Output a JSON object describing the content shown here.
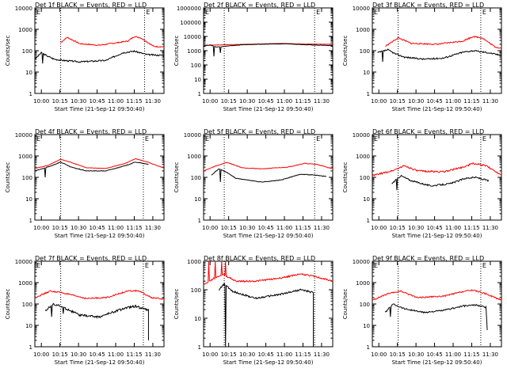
{
  "chart_data": [
    {
      "type": "line",
      "title": "Det 1f BLACK = Events, RED = LLD",
      "xlabel": "Start Time (21-Sep-12 09:50:40)",
      "ylabel": "Counts/sec",
      "ylog": true,
      "ylim": [
        1,
        10000
      ],
      "yticks": [
        "1",
        "10",
        "100",
        "1000",
        "10000"
      ],
      "xticks": [
        "10:00",
        "10:15",
        "10:30",
        "10:45",
        "11:00",
        "11:15",
        "11:30"
      ],
      "xlim_min": [
        0,
        100
      ],
      "vlines_min": [
        20,
        85
      ],
      "markers": [
        "E",
        "E"
      ],
      "red_anchors": [
        [
          20,
          240
        ],
        [
          25,
          420
        ],
        [
          35,
          210
        ],
        [
          50,
          180
        ],
        [
          72,
          280
        ],
        [
          77,
          460
        ],
        [
          82,
          400
        ],
        [
          92,
          160
        ],
        [
          100,
          150
        ]
      ],
      "black_anchors": [
        [
          0,
          40
        ],
        [
          5,
          80
        ],
        [
          10,
          55
        ],
        [
          15,
          40
        ],
        [
          22,
          35
        ],
        [
          35,
          30
        ],
        [
          55,
          35
        ],
        [
          68,
          80
        ],
        [
          77,
          95
        ],
        [
          87,
          65
        ],
        [
          100,
          60
        ]
      ],
      "red_sharp": [],
      "black_sharp": [
        [
          6,
          25
        ]
      ],
      "black_drop": null,
      "red_drop": null,
      "red_noise": 0.06,
      "black_noise": 0.08
    },
    {
      "type": "line",
      "title": "Det 2f BLACK = Events, RED = LLD",
      "xlabel": "Start Time (21-Sep-12 09:50:40)",
      "ylabel": "Counts/sec",
      "ylog": true,
      "ylim": [
        1,
        1000000
      ],
      "yticks": [
        "1",
        "10",
        "100",
        "1000",
        "10000",
        "100000",
        "1000000"
      ],
      "xticks": [
        "10:00",
        "10:15",
        "10:30",
        "10:45",
        "11:00",
        "11:15",
        "11:30"
      ],
      "xlim_min": [
        0,
        100
      ],
      "vlines_min": [
        16,
        86
      ],
      "markers": [
        "E",
        "E"
      ],
      "red_anchors": [
        [
          0,
          2400
        ],
        [
          40,
          2900
        ],
        [
          60,
          3200
        ],
        [
          80,
          2900
        ],
        [
          100,
          2800
        ]
      ],
      "black_anchors": [
        [
          0,
          2200
        ],
        [
          5,
          2500
        ],
        [
          10,
          1800
        ],
        [
          30,
          2600
        ],
        [
          50,
          2900
        ],
        [
          65,
          3000
        ],
        [
          85,
          2500
        ],
        [
          100,
          2300
        ]
      ],
      "red_sharp": [],
      "black_sharp": [
        [
          8,
          400
        ],
        [
          13,
          700
        ]
      ],
      "black_drop": null,
      "red_drop": null,
      "red_noise": 0.02,
      "black_noise": 0.03
    },
    {
      "type": "line",
      "title": "Det 3f BLACK = Events, RED = LLD",
      "xlabel": "Start Time (21-Sep-12 09:50:40)",
      "ylabel": "Counts/sec",
      "ylog": true,
      "ylim": [
        1,
        10000
      ],
      "yticks": [
        "1",
        "10",
        "100",
        "1000",
        "10000"
      ],
      "xticks": [
        "10:00",
        "10:15",
        "10:30",
        "10:45",
        "11:00",
        "11:15",
        "11:30"
      ],
      "xlim_min": [
        0,
        100
      ],
      "vlines_min": [
        20,
        84
      ],
      "markers": [
        "E",
        "E"
      ],
      "red_anchors": [
        [
          10,
          160
        ],
        [
          20,
          400
        ],
        [
          30,
          220
        ],
        [
          50,
          200
        ],
        [
          70,
          280
        ],
        [
          78,
          460
        ],
        [
          85,
          400
        ],
        [
          95,
          150
        ],
        [
          100,
          130
        ]
      ],
      "black_anchors": [
        [
          4,
          80
        ],
        [
          12,
          110
        ],
        [
          18,
          70
        ],
        [
          25,
          50
        ],
        [
          40,
          40
        ],
        [
          55,
          45
        ],
        [
          70,
          85
        ],
        [
          78,
          100
        ],
        [
          90,
          80
        ],
        [
          100,
          60
        ]
      ],
      "red_sharp": [],
      "black_sharp": [
        [
          8,
          30
        ]
      ],
      "black_drop": null,
      "red_drop": null,
      "red_noise": 0.07,
      "black_noise": 0.08
    },
    {
      "type": "line",
      "title": "Det 4f BLACK = Events, RED = LLD",
      "xlabel": "Start Time (21-Sep-12 09:50:40)",
      "ylabel": "Counts/sec",
      "ylog": true,
      "ylim": [
        1,
        10000
      ],
      "yticks": [
        "1",
        "10",
        "100",
        "1000",
        "10000"
      ],
      "xticks": [
        "10:00",
        "10:15",
        "10:30",
        "10:45",
        "11:00",
        "11:15",
        "11:30"
      ],
      "xlim_min": [
        0,
        100
      ],
      "vlines_min": [
        20,
        84
      ],
      "markers": [
        "E",
        "E"
      ],
      "red_anchors": [
        [
          0,
          260
        ],
        [
          10,
          360
        ],
        [
          20,
          700
        ],
        [
          28,
          500
        ],
        [
          40,
          280
        ],
        [
          55,
          260
        ],
        [
          70,
          450
        ],
        [
          78,
          750
        ],
        [
          88,
          500
        ],
        [
          100,
          270
        ]
      ],
      "black_anchors": [
        [
          0,
          200
        ],
        [
          10,
          300
        ],
        [
          20,
          520
        ],
        [
          28,
          300
        ],
        [
          40,
          200
        ],
        [
          55,
          200
        ],
        [
          70,
          350
        ],
        [
          78,
          520
        ],
        [
          88,
          400
        ]
      ],
      "red_sharp": [],
      "black_sharp": [
        [
          8,
          100
        ]
      ],
      "black_drop": null,
      "red_drop": null,
      "red_noise": 0.02,
      "black_noise": 0.03
    },
    {
      "type": "line",
      "title": "Det 5f BLACK = Events, RED = LLD",
      "xlabel": "Start Time (21-Sep-12 09:50:40)",
      "ylabel": "Counts/sec",
      "ylog": true,
      "ylim": [
        1,
        10000
      ],
      "yticks": [
        "1",
        "10",
        "100",
        "1000",
        "10000"
      ],
      "xticks": [
        "10:00",
        "10:15",
        "10:30",
        "10:45",
        "11:00",
        "11:15",
        "11:30"
      ],
      "xlim_min": [
        0,
        100
      ],
      "vlines_min": [
        16,
        86
      ],
      "markers": [
        "E",
        "E"
      ],
      "red_anchors": [
        [
          0,
          200
        ],
        [
          10,
          350
        ],
        [
          18,
          500
        ],
        [
          30,
          280
        ],
        [
          45,
          250
        ],
        [
          65,
          300
        ],
        [
          78,
          450
        ],
        [
          88,
          400
        ],
        [
          100,
          250
        ]
      ],
      "black_anchors": [
        [
          6,
          130
        ],
        [
          12,
          250
        ],
        [
          18,
          170
        ],
        [
          25,
          90
        ],
        [
          45,
          60
        ],
        [
          60,
          75
        ],
        [
          75,
          140
        ],
        [
          85,
          130
        ],
        [
          95,
          110
        ]
      ],
      "red_sharp": [],
      "black_sharp": [
        [
          13,
          60
        ]
      ],
      "black_drop": null,
      "red_drop": null,
      "red_noise": 0.03,
      "black_noise": 0.03
    },
    {
      "type": "line",
      "title": "Det 6f BLACK = Events, RED = LLD",
      "xlabel": "Start Time (21-Sep-12 09:50:40)",
      "ylabel": "Counts/sec",
      "ylog": true,
      "ylim": [
        1,
        10000
      ],
      "yticks": [
        "1",
        "10",
        "100",
        "1000",
        "10000"
      ],
      "xticks": [
        "10:00",
        "10:15",
        "10:30",
        "10:45",
        "11:00",
        "11:15",
        "11:30"
      ],
      "xlim_min": [
        0,
        100
      ],
      "vlines_min": [
        20,
        84
      ],
      "markers": [
        "E",
        "E"
      ],
      "red_anchors": [
        [
          0,
          120
        ],
        [
          15,
          200
        ],
        [
          25,
          350
        ],
        [
          35,
          200
        ],
        [
          55,
          180
        ],
        [
          70,
          300
        ],
        [
          78,
          450
        ],
        [
          88,
          350
        ],
        [
          100,
          130
        ]
      ],
      "black_anchors": [
        [
          15,
          50
        ],
        [
          22,
          120
        ],
        [
          30,
          70
        ],
        [
          45,
          40
        ],
        [
          60,
          50
        ],
        [
          72,
          90
        ],
        [
          80,
          100
        ],
        [
          90,
          70
        ]
      ],
      "red_sharp": [],
      "black_sharp": [
        [
          19,
          25
        ]
      ],
      "black_drop": null,
      "red_drop": null,
      "red_noise": 0.09,
      "black_noise": 0.08
    },
    {
      "type": "line",
      "title": "Det 7f BLACK = Events, RED = LLD",
      "xlabel": "Start Time (21-Sep-12 09:50:40)",
      "ylabel": "Counts/sec",
      "ylog": true,
      "ylim": [
        1,
        10000
      ],
      "yticks": [
        "1",
        "10",
        "100",
        "1000",
        "10000"
      ],
      "xticks": [
        "10:00",
        "10:15",
        "10:30",
        "10:45",
        "11:00",
        "11:15",
        "11:30"
      ],
      "xlim_min": [
        0,
        100
      ],
      "vlines_min": [
        20,
        84
      ],
      "markers": [
        "E",
        "E"
      ],
      "red_anchors": [
        [
          0,
          200
        ],
        [
          12,
          400
        ],
        [
          20,
          350
        ],
        [
          40,
          180
        ],
        [
          55,
          200
        ],
        [
          72,
          400
        ],
        [
          80,
          420
        ],
        [
          90,
          200
        ],
        [
          100,
          170
        ]
      ],
      "black_anchors": [
        [
          8,
          50
        ],
        [
          15,
          100
        ],
        [
          22,
          70
        ],
        [
          35,
          30
        ],
        [
          50,
          25
        ],
        [
          68,
          60
        ],
        [
          78,
          80
        ],
        [
          88,
          50
        ]
      ],
      "red_sharp": [],
      "black_sharp": [
        [
          13,
          25
        ],
        [
          22,
          35
        ]
      ],
      "black_drop": [
        88,
        2
      ],
      "red_drop": null,
      "red_noise": 0.07,
      "black_noise": 0.12
    },
    {
      "type": "line",
      "title": "Det 8f BLACK = Events, RED = LLD",
      "xlabel": "Start Time (21-Sep-12 09:50:40)",
      "ylabel": "Counts/sec",
      "ylog": true,
      "ylim": [
        1,
        1000
      ],
      "yticks": [
        "1",
        "10",
        "100",
        "1000"
      ],
      "xticks": [
        "10:00",
        "10:15",
        "10:30",
        "10:45",
        "11:00",
        "11:15",
        "11:30"
      ],
      "xlim_min": [
        0,
        100
      ],
      "vlines_min": [
        16,
        86
      ],
      "markers": [],
      "red_anchors": [
        [
          0,
          150
        ],
        [
          8,
          250
        ],
        [
          15,
          350
        ],
        [
          25,
          200
        ],
        [
          40,
          200
        ],
        [
          60,
          260
        ],
        [
          75,
          360
        ],
        [
          85,
          300
        ],
        [
          100,
          200
        ]
      ],
      "black_anchors": [
        [
          12,
          100
        ],
        [
          16,
          160
        ],
        [
          22,
          90
        ],
        [
          40,
          50
        ],
        [
          60,
          70
        ],
        [
          75,
          100
        ],
        [
          85,
          80
        ]
      ],
      "red_sharp": [
        [
          4,
          1000
        ],
        [
          9,
          1000
        ],
        [
          14,
          1000
        ],
        [
          17,
          1000
        ]
      ],
      "black_sharp": [
        [
          3,
          5
        ],
        [
          5,
          20
        ],
        [
          17,
          1
        ]
      ],
      "black_drop": [
        85,
        1
      ],
      "red_drop": null,
      "red_noise": 0.06,
      "black_noise": 0.07
    },
    {
      "type": "line",
      "title": "Det 9f BLACK = Events, RED = LLD",
      "xlabel": "Start Time (21-Sep-12 09:50:40)",
      "ylabel": "Counts/sec",
      "ylog": true,
      "ylim": [
        1,
        10000
      ],
      "yticks": [
        "1",
        "10",
        "100",
        "1000",
        "10000"
      ],
      "xticks": [
        "10:00",
        "10:15",
        "10:30",
        "10:45",
        "11:00",
        "11:15",
        "11:30"
      ],
      "xlim_min": [
        0,
        100
      ],
      "vlines_min": [
        20,
        84
      ],
      "markers": [
        "E",
        "E"
      ],
      "red_anchors": [
        [
          0,
          150
        ],
        [
          12,
          300
        ],
        [
          22,
          400
        ],
        [
          35,
          200
        ],
        [
          55,
          230
        ],
        [
          70,
          380
        ],
        [
          78,
          450
        ],
        [
          88,
          300
        ],
        [
          100,
          150
        ]
      ],
      "black_anchors": [
        [
          10,
          40
        ],
        [
          16,
          100
        ],
        [
          25,
          60
        ],
        [
          40,
          40
        ],
        [
          55,
          50
        ],
        [
          70,
          80
        ],
        [
          80,
          90
        ],
        [
          88,
          70
        ]
      ],
      "red_sharp": [],
      "black_sharp": [
        [
          14,
          25
        ]
      ],
      "black_drop": [
        89,
        6
      ],
      "red_drop": null,
      "red_noise": 0.07,
      "black_noise": 0.08
    }
  ]
}
